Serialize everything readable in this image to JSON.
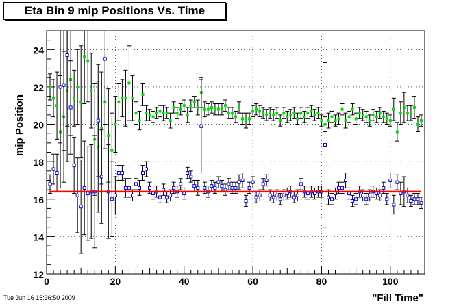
{
  "chart_data": {
    "type": "scatter",
    "title": "Eta Bin 9 mip Positions Vs. Time",
    "xlabel": "\"Fill Time\"",
    "ylabel": "mip Position",
    "xlim": [
      0,
      110
    ],
    "ylim": [
      12,
      25
    ],
    "x_ticks": [
      "0",
      "20",
      "40",
      "60",
      "80",
      "100"
    ],
    "y_ticks": [
      "12",
      "14",
      "16",
      "18",
      "20",
      "22",
      "24"
    ],
    "grid": true,
    "reference_line": {
      "y": 16.4,
      "x_range": [
        1,
        109
      ],
      "color": "#ff0000"
    },
    "series": [
      {
        "color": "#00dd00",
        "marker": "filled-square",
        "x": [
          1,
          2,
          3,
          4,
          5,
          6,
          7,
          8,
          9,
          10,
          11,
          12,
          13,
          14,
          15,
          16,
          17,
          18,
          19,
          20,
          21,
          22,
          23,
          24,
          25,
          26,
          27,
          28,
          29,
          30,
          31,
          32,
          33,
          34,
          35,
          36,
          37,
          38,
          39,
          40,
          41,
          42,
          43,
          44,
          45,
          46,
          47,
          48,
          49,
          50,
          51,
          52,
          53,
          54,
          55,
          56,
          57,
          58,
          59,
          60,
          61,
          62,
          63,
          64,
          65,
          66,
          67,
          68,
          69,
          70,
          71,
          72,
          73,
          74,
          75,
          76,
          77,
          78,
          79,
          80,
          81,
          82,
          83,
          84,
          85,
          86,
          87,
          88,
          89,
          90,
          91,
          92,
          93,
          94,
          95,
          96,
          97,
          98,
          99,
          100,
          101,
          102,
          103,
          104,
          105,
          106,
          107,
          108,
          109
        ],
        "y": [
          22.0,
          21.4,
          21.0,
          19.6,
          20.4,
          21.8,
          22.4,
          21.4,
          22.0,
          21.2,
          23.6,
          23.4,
          21.8,
          19.2,
          18.8,
          19.8,
          21.2,
          19.4,
          18.6,
          20.0,
          21.2,
          21.4,
          21.4,
          22.2,
          21.4,
          20.6,
          20.2,
          21.6,
          20.6,
          20.5,
          20.4,
          20.6,
          20.7,
          20.6,
          20.6,
          20.2,
          20.9,
          20.6,
          20.8,
          21.0,
          20.5,
          21.0,
          21.2,
          20.9,
          21.7,
          20.8,
          20.8,
          20.9,
          20.8,
          20.8,
          20.8,
          21.0,
          20.6,
          20.6,
          20.4,
          20.9,
          20.3,
          20.2,
          20.3,
          20.7,
          20.8,
          20.7,
          20.6,
          20.5,
          20.6,
          20.5,
          20.6,
          20.2,
          20.6,
          20.4,
          20.5,
          20.6,
          20.3,
          20.6,
          20.4,
          20.6,
          20.7,
          20.5,
          20.6,
          20.2,
          20.0,
          20.2,
          20.4,
          20.2,
          20.3,
          20.8,
          20.2,
          20.4,
          20.8,
          20.3,
          20.6,
          20.5,
          20.4,
          20.2,
          20.5,
          20.4,
          20.6,
          20.4,
          20.3,
          20.2,
          20.8,
          19.6,
          20.6,
          20.9,
          20.6,
          20.6,
          20.9,
          20.0,
          20.2
        ],
        "err": [
          0.7,
          1.0,
          1.8,
          3.0,
          3.5,
          3.8,
          3.0,
          1.5,
          2.0,
          3.0,
          2.5,
          2.2,
          2.0,
          3.0,
          3.5,
          3.0,
          2.5,
          2.5,
          2.0,
          1.5,
          1.0,
          1.0,
          1.5,
          2.0,
          1.2,
          0.6,
          0.5,
          0.6,
          0.4,
          0.3,
          0.3,
          0.3,
          0.3,
          0.4,
          0.3,
          0.4,
          0.3,
          0.3,
          0.3,
          0.3,
          0.4,
          0.3,
          0.3,
          0.4,
          0.8,
          0.4,
          0.3,
          0.3,
          0.3,
          0.3,
          0.3,
          0.3,
          0.3,
          0.3,
          0.3,
          0.3,
          0.3,
          0.4,
          0.3,
          0.3,
          0.3,
          0.3,
          0.3,
          0.3,
          0.3,
          0.3,
          0.3,
          0.3,
          0.3,
          0.3,
          0.3,
          0.3,
          0.3,
          0.3,
          0.3,
          0.3,
          0.3,
          0.3,
          0.3,
          0.3,
          0.4,
          0.4,
          0.3,
          0.3,
          0.3,
          0.3,
          0.4,
          0.3,
          0.3,
          0.3,
          0.3,
          0.3,
          0.3,
          0.3,
          0.3,
          0.3,
          0.3,
          0.3,
          0.3,
          0.3,
          0.6,
          0.5,
          0.6,
          0.8,
          0.4,
          0.4,
          0.6,
          0.4,
          0.3
        ]
      },
      {
        "color": "#0000cc",
        "marker": "open-square",
        "x": [
          1,
          2,
          3,
          4,
          5,
          6,
          7,
          8,
          9,
          10,
          11,
          12,
          13,
          14,
          15,
          16,
          17,
          18,
          19,
          20,
          21,
          22,
          23,
          24,
          25,
          26,
          27,
          28,
          29,
          30,
          31,
          32,
          33,
          34,
          35,
          36,
          37,
          38,
          39,
          40,
          41,
          42,
          43,
          44,
          45,
          46,
          47,
          48,
          49,
          50,
          51,
          52,
          53,
          54,
          55,
          56,
          57,
          58,
          59,
          60,
          61,
          62,
          63,
          64,
          65,
          66,
          67,
          68,
          69,
          70,
          71,
          72,
          73,
          74,
          75,
          76,
          77,
          78,
          79,
          80,
          81,
          82,
          83,
          84,
          85,
          86,
          87,
          88,
          89,
          90,
          91,
          92,
          93,
          94,
          95,
          96,
          97,
          98,
          99,
          100,
          101,
          102,
          103,
          104,
          105,
          106,
          107,
          108,
          109
        ],
        "y": [
          16.8,
          17.6,
          17.4,
          22.0,
          22.1,
          23.7,
          20.9,
          17.8,
          16.2,
          15.6,
          16.6,
          16.3,
          16.4,
          16.4,
          20.2,
          17.2,
          23.5,
          16.4,
          16.0,
          16.2,
          17.4,
          17.4,
          16.6,
          16.6,
          16.2,
          16.8,
          16.6,
          17.4,
          17.6,
          16.6,
          16.3,
          16.4,
          16.1,
          16.5,
          16.1,
          16.2,
          16.6,
          16.4,
          16.8,
          16.3,
          17.4,
          17.2,
          16.7,
          16.6,
          19.9,
          16.6,
          16.4,
          16.7,
          16.6,
          16.9,
          16.7,
          16.5,
          16.8,
          16.6,
          16.6,
          16.9,
          17.0,
          15.9,
          16.6,
          16.9,
          16.1,
          16.2,
          16.8,
          17.0,
          16.2,
          16.1,
          16.2,
          16.0,
          16.2,
          16.3,
          16.4,
          16.1,
          16.2,
          16.8,
          16.4,
          16.3,
          16.4,
          16.3,
          16.4,
          16.4,
          18.9,
          16.1,
          16.0,
          16.3,
          16.6,
          16.6,
          17.0,
          16.3,
          15.9,
          16.0,
          16.4,
          16.2,
          16.0,
          16.2,
          16.4,
          16.3,
          16.2,
          16.6,
          16.0,
          17.0,
          15.7,
          16.9,
          16.3,
          16.4,
          16.2,
          15.9,
          16.0,
          16.0,
          15.8
        ],
        "err": [
          0.5,
          0.8,
          1.0,
          3.0,
          3.5,
          3.8,
          2.5,
          1.5,
          2.0,
          2.5,
          2.5,
          2.5,
          2.5,
          3.0,
          3.0,
          2.5,
          3.5,
          2.5,
          2.0,
          1.0,
          0.4,
          0.4,
          0.5,
          0.5,
          0.3,
          0.3,
          0.4,
          0.4,
          0.4,
          0.3,
          0.3,
          0.3,
          0.3,
          0.3,
          0.3,
          0.3,
          0.3,
          0.3,
          0.3,
          0.3,
          0.3,
          0.3,
          0.3,
          0.4,
          2.5,
          0.3,
          0.3,
          0.3,
          0.3,
          0.3,
          0.3,
          0.3,
          0.3,
          0.3,
          0.3,
          0.4,
          0.4,
          0.3,
          0.3,
          0.3,
          0.3,
          0.3,
          0.3,
          0.3,
          0.3,
          0.3,
          0.3,
          0.3,
          0.3,
          0.3,
          0.3,
          0.3,
          0.3,
          0.3,
          0.3,
          0.3,
          0.3,
          0.3,
          0.3,
          0.3,
          4.4,
          0.4,
          0.3,
          0.3,
          0.3,
          0.3,
          0.4,
          0.3,
          0.3,
          0.3,
          0.3,
          0.3,
          0.3,
          0.3,
          0.3,
          0.3,
          0.3,
          0.3,
          0.3,
          0.4,
          0.5,
          0.4,
          0.6,
          0.8,
          0.4,
          0.3,
          0.3,
          0.3,
          0.3
        ]
      }
    ]
  },
  "timestamp": "Tue Jun 16 15:36:50 2009"
}
